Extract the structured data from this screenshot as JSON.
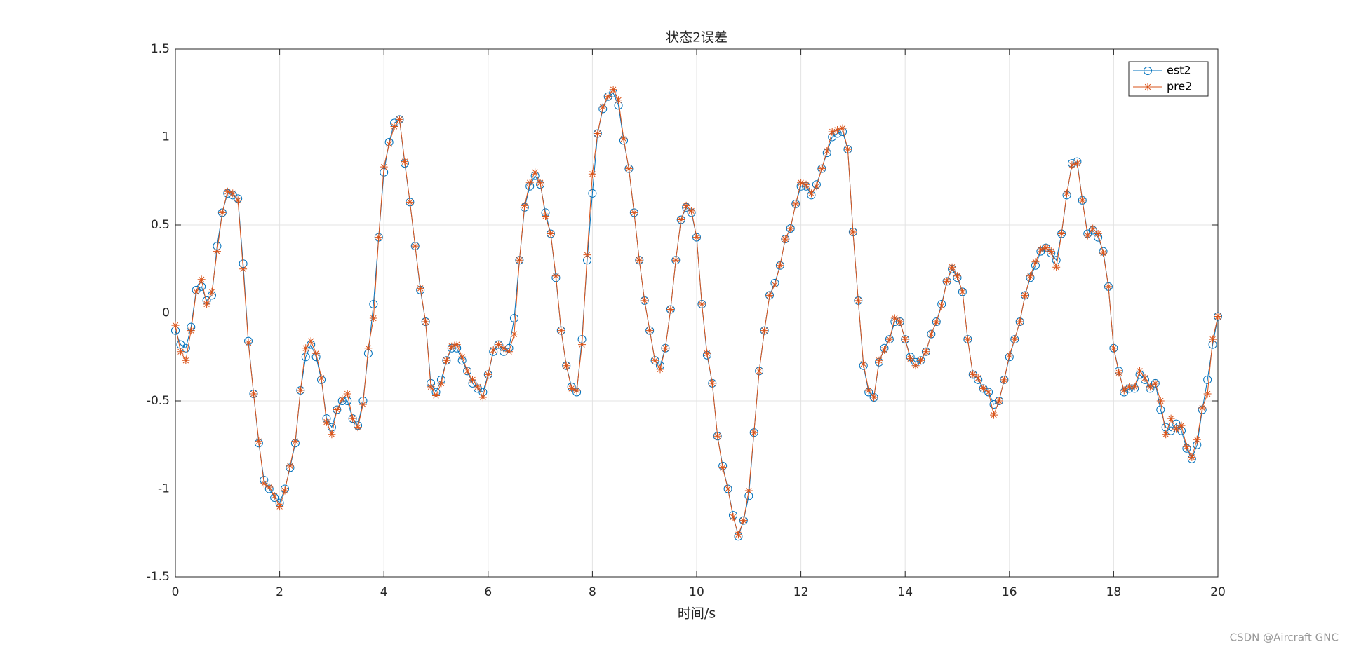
{
  "chart_data": {
    "type": "line",
    "title": "状态2误差",
    "xlabel": "时间/s",
    "watermark": "CSDN @Aircraft GNC",
    "x": [
      0,
      0.1,
      0.2,
      0.3,
      0.4,
      0.5,
      0.6,
      0.7,
      0.8,
      0.9,
      1,
      1.1,
      1.2,
      1.3,
      1.4,
      1.5,
      1.6,
      1.7,
      1.8,
      1.9,
      2,
      2.1,
      2.2,
      2.3,
      2.4,
      2.5,
      2.6,
      2.7,
      2.8,
      2.9,
      3,
      3.1,
      3.2,
      3.3,
      3.4,
      3.5,
      3.6,
      3.7,
      3.8,
      3.9,
      4,
      4.1,
      4.2,
      4.3,
      4.4,
      4.5,
      4.6,
      4.7,
      4.8,
      4.9,
      5,
      5.1,
      5.2,
      5.3,
      5.4,
      5.5,
      5.6,
      5.7,
      5.8,
      5.9,
      6,
      6.1,
      6.2,
      6.3,
      6.4,
      6.5,
      6.6,
      6.7,
      6.8,
      6.9,
      7,
      7.1,
      7.2,
      7.3,
      7.4,
      7.5,
      7.6,
      7.7,
      7.8,
      7.9,
      8,
      8.1,
      8.2,
      8.3,
      8.4,
      8.5,
      8.6,
      8.7,
      8.8,
      8.9,
      9,
      9.1,
      9.2,
      9.3,
      9.4,
      9.5,
      9.6,
      9.7,
      9.8,
      9.9,
      10,
      10.1,
      10.2,
      10.3,
      10.4,
      10.5,
      10.6,
      10.7,
      10.8,
      10.9,
      11,
      11.1,
      11.2,
      11.3,
      11.4,
      11.5,
      11.6,
      11.7,
      11.8,
      11.9,
      12,
      12.1,
      12.2,
      12.3,
      12.4,
      12.5,
      12.6,
      12.7,
      12.8,
      12.9,
      13,
      13.1,
      13.2,
      13.3,
      13.4,
      13.5,
      13.6,
      13.7,
      13.8,
      13.9,
      14,
      14.1,
      14.2,
      14.3,
      14.4,
      14.5,
      14.6,
      14.7,
      14.8,
      14.9,
      15,
      15.1,
      15.2,
      15.3,
      15.4,
      15.5,
      15.6,
      15.7,
      15.8,
      15.9,
      16,
      16.1,
      16.2,
      16.3,
      16.4,
      16.5,
      16.6,
      16.7,
      16.8,
      16.9,
      17,
      17.1,
      17.2,
      17.3,
      17.4,
      17.5,
      17.6,
      17.7,
      17.8,
      17.9,
      18,
      18.1,
      18.2,
      18.3,
      18.4,
      18.5,
      18.6,
      18.7,
      18.8,
      18.9,
      19,
      19.1,
      19.2,
      19.3,
      19.4,
      19.5,
      19.6,
      19.7,
      19.8,
      19.9,
      20
    ],
    "series": [
      {
        "name": "est2",
        "color": "#0072bd",
        "marker": "o",
        "values": [
          -0.1,
          -0.18,
          -0.2,
          -0.08,
          0.13,
          0.15,
          0.07,
          0.1,
          0.38,
          0.57,
          0.68,
          0.67,
          0.65,
          0.28,
          -0.16,
          -0.46,
          -0.74,
          -0.95,
          -1.0,
          -1.05,
          -1.08,
          -1.0,
          -0.88,
          -0.74,
          -0.44,
          -0.25,
          -0.18,
          -0.25,
          -0.38,
          -0.6,
          -0.65,
          -0.55,
          -0.5,
          -0.5,
          -0.6,
          -0.64,
          -0.5,
          -0.23,
          0.05,
          0.43,
          0.8,
          0.97,
          1.08,
          1.1,
          0.85,
          0.63,
          0.38,
          0.13,
          -0.05,
          -0.4,
          -0.45,
          -0.38,
          -0.27,
          -0.2,
          -0.2,
          -0.27,
          -0.33,
          -0.4,
          -0.43,
          -0.45,
          -0.35,
          -0.22,
          -0.18,
          -0.22,
          -0.2,
          -0.03,
          0.3,
          0.6,
          0.72,
          0.78,
          0.73,
          0.57,
          0.45,
          0.2,
          -0.1,
          -0.3,
          -0.42,
          -0.45,
          -0.15,
          0.3,
          0.68,
          1.02,
          1.16,
          1.23,
          1.25,
          1.18,
          0.98,
          0.82,
          0.57,
          0.3,
          0.07,
          -0.1,
          -0.27,
          -0.3,
          -0.2,
          0.02,
          0.3,
          0.53,
          0.6,
          0.57,
          0.43,
          0.05,
          -0.24,
          -0.4,
          -0.7,
          -0.87,
          -1.0,
          -1.15,
          -1.27,
          -1.18,
          -1.04,
          -0.68,
          -0.33,
          -0.1,
          0.1,
          0.17,
          0.27,
          0.42,
          0.48,
          0.62,
          0.72,
          0.72,
          0.67,
          0.73,
          0.82,
          0.91,
          1.0,
          1.02,
          1.03,
          0.93,
          0.46,
          0.07,
          -0.3,
          -0.45,
          -0.48,
          -0.28,
          -0.2,
          -0.15,
          -0.05,
          -0.05,
          -0.15,
          -0.25,
          -0.28,
          -0.27,
          -0.22,
          -0.12,
          -0.05,
          0.05,
          0.18,
          0.25,
          0.2,
          0.12,
          -0.15,
          -0.35,
          -0.38,
          -0.43,
          -0.45,
          -0.52,
          -0.5,
          -0.38,
          -0.25,
          -0.15,
          -0.05,
          0.1,
          0.2,
          0.27,
          0.35,
          0.37,
          0.34,
          0.3,
          0.45,
          0.67,
          0.85,
          0.86,
          0.64,
          0.45,
          0.47,
          0.43,
          0.35,
          0.15,
          -0.2,
          -0.33,
          -0.45,
          -0.43,
          -0.43,
          -0.35,
          -0.38,
          -0.43,
          -0.4,
          -0.55,
          -0.65,
          -0.67,
          -0.63,
          -0.67,
          -0.77,
          -0.83,
          -0.75,
          -0.55,
          -0.38,
          -0.18,
          -0.02
        ]
      },
      {
        "name": "pre2",
        "color": "#d95319",
        "marker": "*",
        "values": [
          -0.07,
          -0.22,
          -0.27,
          -0.1,
          0.12,
          0.19,
          0.05,
          0.12,
          0.35,
          0.57,
          0.69,
          0.68,
          0.64,
          0.25,
          -0.17,
          -0.46,
          -0.73,
          -0.97,
          -0.99,
          -1.04,
          -1.1,
          -1.01,
          -0.87,
          -0.73,
          -0.44,
          -0.2,
          -0.16,
          -0.23,
          -0.37,
          -0.62,
          -0.69,
          -0.55,
          -0.49,
          -0.46,
          -0.6,
          -0.65,
          -0.52,
          -0.2,
          -0.03,
          0.43,
          0.83,
          0.96,
          1.06,
          1.1,
          0.86,
          0.63,
          0.38,
          0.14,
          -0.05,
          -0.42,
          -0.47,
          -0.4,
          -0.27,
          -0.19,
          -0.18,
          -0.25,
          -0.33,
          -0.38,
          -0.42,
          -0.48,
          -0.35,
          -0.21,
          -0.18,
          -0.2,
          -0.22,
          -0.12,
          0.3,
          0.61,
          0.74,
          0.8,
          0.74,
          0.55,
          0.45,
          0.21,
          -0.1,
          -0.3,
          -0.43,
          -0.44,
          -0.18,
          0.33,
          0.79,
          1.02,
          1.17,
          1.23,
          1.27,
          1.21,
          0.99,
          0.82,
          0.57,
          0.3,
          0.07,
          -0.1,
          -0.27,
          -0.32,
          -0.2,
          0.02,
          0.3,
          0.53,
          0.61,
          0.58,
          0.43,
          0.05,
          -0.23,
          -0.4,
          -0.7,
          -0.88,
          -1.0,
          -1.16,
          -1.26,
          -1.18,
          -1.01,
          -0.68,
          -0.33,
          -0.1,
          0.1,
          0.16,
          0.27,
          0.42,
          0.48,
          0.62,
          0.74,
          0.73,
          0.68,
          0.72,
          0.82,
          0.92,
          1.03,
          1.04,
          1.05,
          0.93,
          0.46,
          0.07,
          -0.29,
          -0.44,
          -0.48,
          -0.27,
          -0.21,
          -0.15,
          -0.03,
          -0.05,
          -0.15,
          -0.26,
          -0.3,
          -0.27,
          -0.22,
          -0.12,
          -0.05,
          0.04,
          0.18,
          0.26,
          0.21,
          0.12,
          -0.15,
          -0.35,
          -0.37,
          -0.43,
          -0.45,
          -0.58,
          -0.5,
          -0.38,
          -0.24,
          -0.15,
          -0.05,
          0.1,
          0.21,
          0.29,
          0.36,
          0.37,
          0.35,
          0.26,
          0.45,
          0.68,
          0.84,
          0.85,
          0.64,
          0.44,
          0.48,
          0.45,
          0.34,
          0.15,
          -0.2,
          -0.34,
          -0.44,
          -0.42,
          -0.42,
          -0.33,
          -0.37,
          -0.42,
          -0.4,
          -0.5,
          -0.69,
          -0.6,
          -0.66,
          -0.64,
          -0.76,
          -0.82,
          -0.72,
          -0.54,
          -0.46,
          -0.15,
          -0.02
        ]
      }
    ],
    "xlim": [
      0,
      20
    ],
    "xticks": [
      0,
      2,
      4,
      6,
      8,
      10,
      12,
      14,
      16,
      18,
      20
    ],
    "ylim": [
      -1.5,
      1.5
    ],
    "yticks": [
      -1.5,
      -1,
      -0.5,
      0,
      0.5,
      1,
      1.5
    ],
    "grid": true,
    "legend": "northeast"
  }
}
